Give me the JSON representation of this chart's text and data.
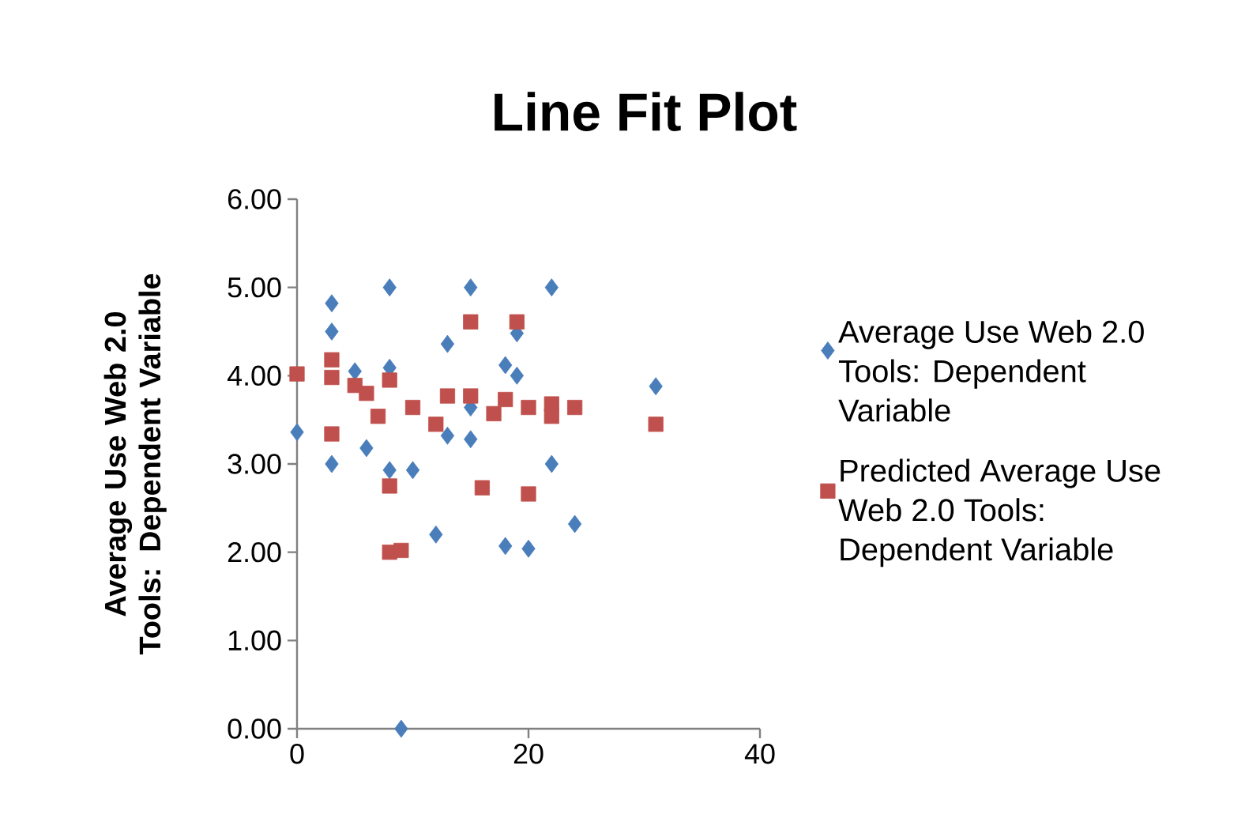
{
  "chart_data": {
    "type": "scatter",
    "title": "Line Fit  Plot",
    "ylabel": "Average Use Web 2.0 Tools: Dependent Variable",
    "xlim": [
      0,
      40
    ],
    "xticks": [
      0,
      20,
      40
    ],
    "ylim": [
      0,
      6
    ],
    "yticks": [
      {
        "value": 0,
        "label": "0.00"
      },
      {
        "value": 1,
        "label": "1.00"
      },
      {
        "value": 2,
        "label": "2.00"
      },
      {
        "value": 3,
        "label": "3.00"
      },
      {
        "value": 4,
        "label": "4.00"
      },
      {
        "value": 5,
        "label": "5.00"
      },
      {
        "value": 6,
        "label": "6.00"
      }
    ],
    "legend": "right",
    "series": [
      {
        "name": "Average Use Web 2.0 Tools: Dependent Variable",
        "color": "#4a7ebb",
        "marker": "diamond",
        "x": [
          0,
          3,
          3,
          3,
          8,
          15,
          13,
          6,
          8,
          10,
          12,
          9,
          5,
          8,
          13,
          15,
          18,
          19,
          22,
          19,
          22,
          24,
          18,
          20,
          31,
          15
        ],
        "values": [
          3.36,
          4.82,
          4.5,
          3.0,
          5.0,
          5.0,
          4.36,
          3.18,
          2.93,
          2.93,
          2.2,
          0,
          4.05,
          4.09,
          3.32,
          3.28,
          4.12,
          4.0,
          5.0,
          4.48,
          3.0,
          2.32,
          2.07,
          2.04,
          3.88,
          3.64
        ]
      },
      {
        "name": "Predicted Average Use Web 2.0 Tools: Dependent Variable",
        "color": "#c0504d",
        "marker": "square",
        "x": [
          0,
          3,
          3,
          3,
          5,
          6,
          7,
          8,
          10,
          12,
          13,
          15,
          15,
          8,
          8,
          9,
          16,
          17,
          19,
          18,
          20,
          22,
          22,
          24,
          20,
          31
        ],
        "values": [
          4.02,
          4.18,
          3.98,
          3.34,
          3.89,
          3.8,
          3.54,
          3.95,
          3.64,
          3.45,
          3.77,
          3.77,
          4.61,
          2.75,
          2.0,
          2.02,
          2.73,
          3.57,
          4.61,
          3.73,
          3.64,
          3.68,
          3.54,
          3.64,
          2.66,
          3.45
        ]
      }
    ]
  }
}
